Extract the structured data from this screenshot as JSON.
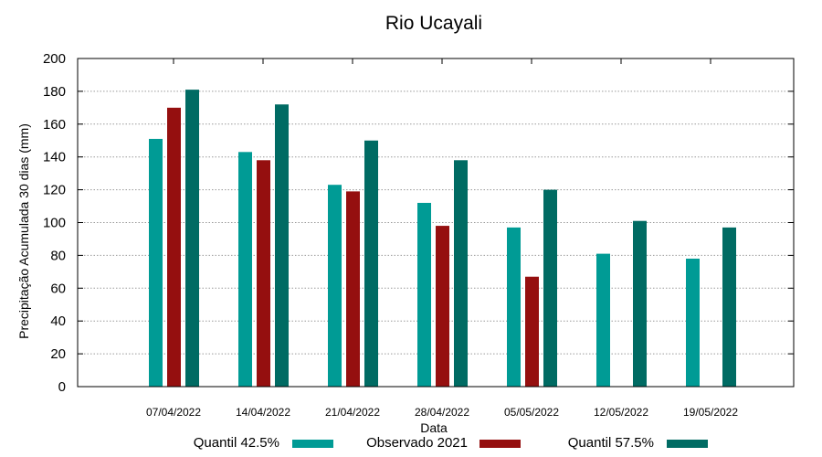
{
  "chart_data": {
    "type": "bar",
    "title": "Rio Ucayali",
    "xlabel": "Data",
    "ylabel": "Precipitação Acumulada 30 dias (mm)",
    "ylim": [
      0,
      200
    ],
    "yticks": [
      0,
      20,
      40,
      60,
      80,
      100,
      120,
      140,
      160,
      180,
      200
    ],
    "grid": true,
    "legend_position": "bottom",
    "categories": [
      "07/04/2022",
      "14/04/2022",
      "21/04/2022",
      "28/04/2022",
      "05/05/2022",
      "12/05/2022",
      "19/05/2022"
    ],
    "series": [
      {
        "name": "Quantil 42.5%",
        "color": "#009b95",
        "values": [
          151,
          143,
          123,
          112,
          97,
          81,
          78
        ]
      },
      {
        "name": "Observado 2021",
        "color": "#950f0f",
        "values": [
          170,
          138,
          119,
          98,
          67,
          null,
          null
        ]
      },
      {
        "name": "Quantil 57.5%",
        "color": "#006b63",
        "values": [
          181,
          172,
          150,
          138,
          120,
          101,
          97
        ]
      }
    ]
  }
}
